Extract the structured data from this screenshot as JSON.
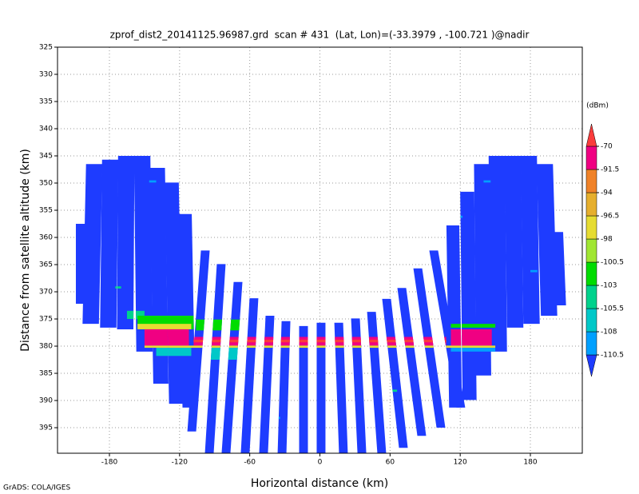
{
  "chart_data": {
    "type": "profile",
    "title": "zprof_dist2_20141125.96987.grd  scan # 431  (Lat, Lon)=(-33.3979 , -100.721 )@nadir",
    "x_label": "Horizontal distance (km)",
    "y_label": "Distance from satellite altitude (km)",
    "credit": "GrADS: COLA/IGES",
    "xlim": [
      -224.4,
      224.4
    ],
    "ylim": [
      325,
      399.7
    ],
    "y_inverted": true,
    "xticks": [
      -180,
      -120,
      -60,
      0,
      60,
      120,
      180
    ],
    "yticks": [
      325,
      330,
      335,
      340,
      345,
      350,
      355,
      360,
      365,
      370,
      375,
      380,
      385,
      390,
      395
    ],
    "grid": true,
    "colorbar": {
      "label": "(dBm)",
      "levels": [
        -110.5,
        -108,
        -105.5,
        -103,
        -100.5,
        -98,
        -96.5,
        -94,
        -91.5,
        -70
      ],
      "colors": [
        "#1e3cff",
        "#00a0ff",
        "#00c8c8",
        "#00d28c",
        "#00dc00",
        "#a0e632",
        "#e6dc32",
        "#e6af2d",
        "#f08228",
        "#f00082",
        "#fa3c3c"
      ]
    },
    "beams": [
      {
        "x": [
          -203.2,
          -203.2
        ],
        "y": [
          357.5,
          372.2
        ],
        "width": 11
      },
      {
        "x": [
          -193.0,
          -196.0
        ],
        "y": [
          346.5,
          375.9
        ],
        "width": 14
      },
      {
        "x": [
          -179.3,
          -181.0
        ],
        "y": [
          345.7,
          376.6
        ],
        "width": 14
      },
      {
        "x": [
          -165.6,
          -166.5
        ],
        "y": [
          345.0,
          376.9
        ],
        "width": 14
      },
      {
        "x": [
          -152.0,
          -150.0
        ],
        "y": [
          345.0,
          381.0
        ],
        "width": 14
      },
      {
        "x": [
          -139.0,
          -136.0
        ],
        "y": [
          347.2,
          386.9
        ],
        "width": 13
      },
      {
        "x": [
          -126.7,
          -123.0
        ],
        "y": [
          349.9,
          390.6
        ],
        "width": 12
      },
      {
        "x": [
          -115.1,
          -112.0
        ],
        "y": [
          355.7,
          391.3
        ],
        "width": 11
      },
      {
        "x": [
          -98.0,
          -109.6
        ],
        "y": [
          362.4,
          395.7
        ],
        "width": 7.5
      },
      {
        "x": [
          -84.4,
          -94.6
        ],
        "y": [
          364.9,
          399.7
        ],
        "width": 7.5
      },
      {
        "x": [
          -70.0,
          -80.3
        ],
        "y": [
          368.2,
          399.7
        ],
        "width": 7.5
      },
      {
        "x": [
          -56.4,
          -63.9
        ],
        "y": [
          371.2,
          399.7
        ],
        "width": 7.5
      },
      {
        "x": [
          -42.7,
          -48.2
        ],
        "y": [
          374.4,
          399.7
        ],
        "width": 7.5
      },
      {
        "x": [
          -29.0,
          -32.4
        ],
        "y": [
          375.4,
          399.7
        ],
        "width": 7.5
      },
      {
        "x": [
          -14.0,
          -14.0
        ],
        "y": [
          376.3,
          399.7
        ],
        "width": 7.5
      },
      {
        "x": [
          1.0,
          1.0
        ],
        "y": [
          375.7,
          399.7
        ],
        "width": 7.5
      },
      {
        "x": [
          16.1,
          20.1
        ],
        "y": [
          375.7,
          399.7
        ],
        "width": 7.5
      },
      {
        "x": [
          30.4,
          35.9
        ],
        "y": [
          374.9,
          399.7
        ],
        "width": 7.5
      },
      {
        "x": [
          44.1,
          52.9
        ],
        "y": [
          373.7,
          399.7
        ],
        "width": 7.5
      },
      {
        "x": [
          57.0,
          71.4
        ],
        "y": [
          371.3,
          398.7
        ],
        "width": 7.5
      },
      {
        "x": [
          70.0,
          87.1
        ],
        "y": [
          369.3,
          396.5
        ],
        "width": 7.5
      },
      {
        "x": [
          83.7,
          103.5
        ],
        "y": [
          365.7,
          395.0
        ],
        "width": 7.5
      },
      {
        "x": [
          97.3,
          120.5
        ],
        "y": [
          362.4,
          391.3
        ],
        "width": 7.5
      },
      {
        "x": [
          113.7,
          116.0
        ],
        "y": [
          357.8,
          391.3
        ],
        "width": 11
      },
      {
        "x": [
          126.0,
          128.0
        ],
        "y": [
          351.6,
          389.9
        ],
        "width": 12
      },
      {
        "x": [
          138.3,
          140.0
        ],
        "y": [
          346.5,
          385.4
        ],
        "width": 13
      },
      {
        "x": [
          151.3,
          153.0
        ],
        "y": [
          345.0,
          381.0
        ],
        "width": 14
      },
      {
        "x": [
          164.9,
          167.0
        ],
        "y": [
          345.0,
          376.6
        ],
        "width": 14
      },
      {
        "x": [
          178.6,
          181.0
        ],
        "y": [
          345.0,
          375.9
        ],
        "width": 14
      },
      {
        "x": [
          192.3,
          196.0
        ],
        "y": [
          346.5,
          374.4
        ],
        "width": 14
      },
      {
        "x": [
          202.5,
          205.0
        ],
        "y": [
          359.0,
          372.5
        ],
        "width": 11
      }
    ],
    "echoes": [
      {
        "x": [
          -165,
          -150
        ],
        "y": [
          373.5,
          375
        ],
        "value": -104
      },
      {
        "x": [
          -156,
          -108
        ],
        "y": [
          374.4,
          376.9
        ],
        "value": -101.5
      },
      {
        "x": [
          -106,
          -68
        ],
        "y": [
          375.1,
          377.1
        ],
        "value": -101.5
      },
      {
        "x": [
          -156,
          -110
        ],
        "y": [
          375.9,
          376.9
        ],
        "value": -97
      },
      {
        "x": [
          -150,
          -112
        ],
        "y": [
          376.9,
          379.9
        ],
        "value": -85
      },
      {
        "x": [
          -108,
          108
        ],
        "y": [
          378.3,
          379.9
        ],
        "value": -85
      },
      {
        "x": [
          -108,
          108
        ],
        "y": [
          378.8,
          379.3
        ],
        "value": -68
      },
      {
        "x": [
          112,
          150
        ],
        "y": [
          375.9,
          376.6
        ],
        "value": -101.5
      },
      {
        "x": [
          112,
          147
        ],
        "y": [
          376.9,
          379.9
        ],
        "value": -85
      },
      {
        "x": [
          -150,
          150
        ],
        "y": [
          379.9,
          380.3
        ],
        "value": -97
      },
      {
        "x": [
          -140,
          -110
        ],
        "y": [
          380.3,
          381.8
        ],
        "value": -107
      },
      {
        "x": [
          -95,
          -68
        ],
        "y": [
          380.3,
          382.5
        ],
        "value": -107
      },
      {
        "x": [
          112,
          150
        ],
        "y": [
          380.3,
          381
        ],
        "value": -109
      },
      {
        "x": [
          -146,
          -140
        ],
        "y": [
          349.5,
          349.9
        ],
        "value": -109
      },
      {
        "x": [
          -120,
          -115
        ],
        "y": [
          354,
          354.4
        ],
        "value": -109
      },
      {
        "x": [
          -175,
          -170
        ],
        "y": [
          369,
          369.4
        ],
        "value": -104
      },
      {
        "x": [
          140,
          146
        ],
        "y": [
          349.5,
          349.9
        ],
        "value": -109
      },
      {
        "x": [
          118,
          122
        ],
        "y": [
          356,
          356.4
        ],
        "value": -109
      },
      {
        "x": [
          180,
          186
        ],
        "y": [
          366,
          366.4
        ],
        "value": -109
      },
      {
        "x": [
          60,
          66
        ],
        "y": [
          388,
          388.4
        ],
        "value": -104
      },
      {
        "x": [
          -40,
          -34
        ],
        "y": [
          393,
          393.4
        ],
        "value": -109
      }
    ]
  }
}
